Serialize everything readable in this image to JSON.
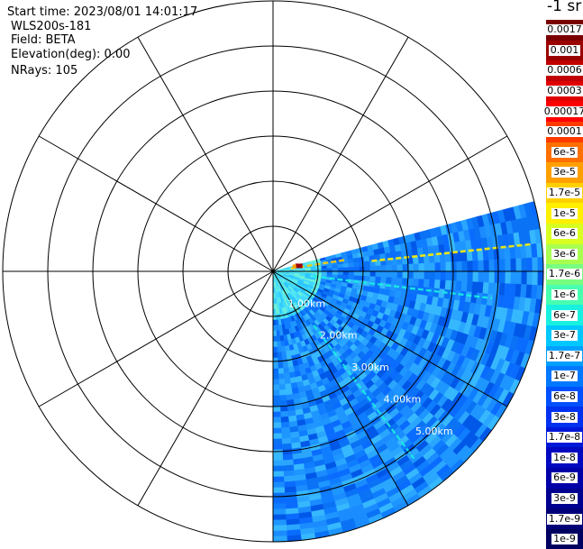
{
  "info": [
    "Start time: 2023/08/01 14:01:17",
    "WLS200s-181",
    "Field: BETA",
    "Elevation(deg): 0.00",
    "NRays: 105"
  ],
  "colorbar": {
    "unit_label": "-1 sr",
    "ticks": [
      {
        "label": "0.0017",
        "color": "#7a0000"
      },
      {
        "label": "0.001",
        "color": "#9a0000"
      },
      {
        "label": "0.0006",
        "color": "#c00000"
      },
      {
        "label": "0.0003",
        "color": "#e00000"
      },
      {
        "label": "0.00017",
        "color": "#ff0000"
      },
      {
        "label": "0.0001",
        "color": "#ff3a00"
      },
      {
        "label": "6e-5",
        "color": "#ff7000"
      },
      {
        "label": "3e-5",
        "color": "#ffa000"
      },
      {
        "label": "1.7e-5",
        "color": "#ffd000"
      },
      {
        "label": "1e-5",
        "color": "#fff000"
      },
      {
        "label": "6e-6",
        "color": "#d8ff20"
      },
      {
        "label": "3e-6",
        "color": "#a8ff50"
      },
      {
        "label": "1.7e-6",
        "color": "#78ff80"
      },
      {
        "label": "1e-6",
        "color": "#48ffb0"
      },
      {
        "label": "6e-7",
        "color": "#18f0e0"
      },
      {
        "label": "3e-7",
        "color": "#00c8ff"
      },
      {
        "label": "1.7e-7",
        "color": "#00a0ff"
      },
      {
        "label": "1e-7",
        "color": "#0078ff"
      },
      {
        "label": "6e-8",
        "color": "#0050ff"
      },
      {
        "label": "3e-8",
        "color": "#0030f0"
      },
      {
        "label": "1.7e-8",
        "color": "#0018d8"
      },
      {
        "label": "1e-8",
        "color": "#0008c0"
      },
      {
        "label": "6e-9",
        "color": "#0000a8"
      },
      {
        "label": "3e-9",
        "color": "#000090"
      },
      {
        "label": "1.7e-9",
        "color": "#000078"
      },
      {
        "label": "1e-9",
        "color": "#000060"
      }
    ]
  },
  "chart_data": {
    "type": "heatmap",
    "projection": "polar PPI (radar plan position indicator)",
    "field": "BETA",
    "unit": "sr-1",
    "colorscale": "logarithmic",
    "range_rings_km": [
      "1.00km",
      "2.00km",
      "3.00km",
      "4.00km",
      "5.00km"
    ],
    "max_range_km": 6,
    "azimuth_spokes_deg": [
      0,
      30,
      60,
      90,
      120,
      150,
      180,
      210,
      240,
      270,
      300,
      330
    ],
    "sector_azimuth_deg": [
      75,
      180
    ],
    "background_level": "1.7e-8",
    "features": [
      {
        "description": "strong return near origin",
        "azimuth_deg": 79,
        "range_km": 0.45,
        "level": "0.001"
      },
      {
        "description": "streak along sector",
        "azimuth_deg": 81,
        "range_km": 1.2,
        "level": "1.7e-5"
      },
      {
        "description": "streak",
        "azimuth_deg": 97,
        "range_km": 2.4,
        "level": "1e-5"
      },
      {
        "description": "streak",
        "azimuth_deg": 143,
        "range_km": 3.6,
        "level": "6e-7"
      }
    ]
  }
}
